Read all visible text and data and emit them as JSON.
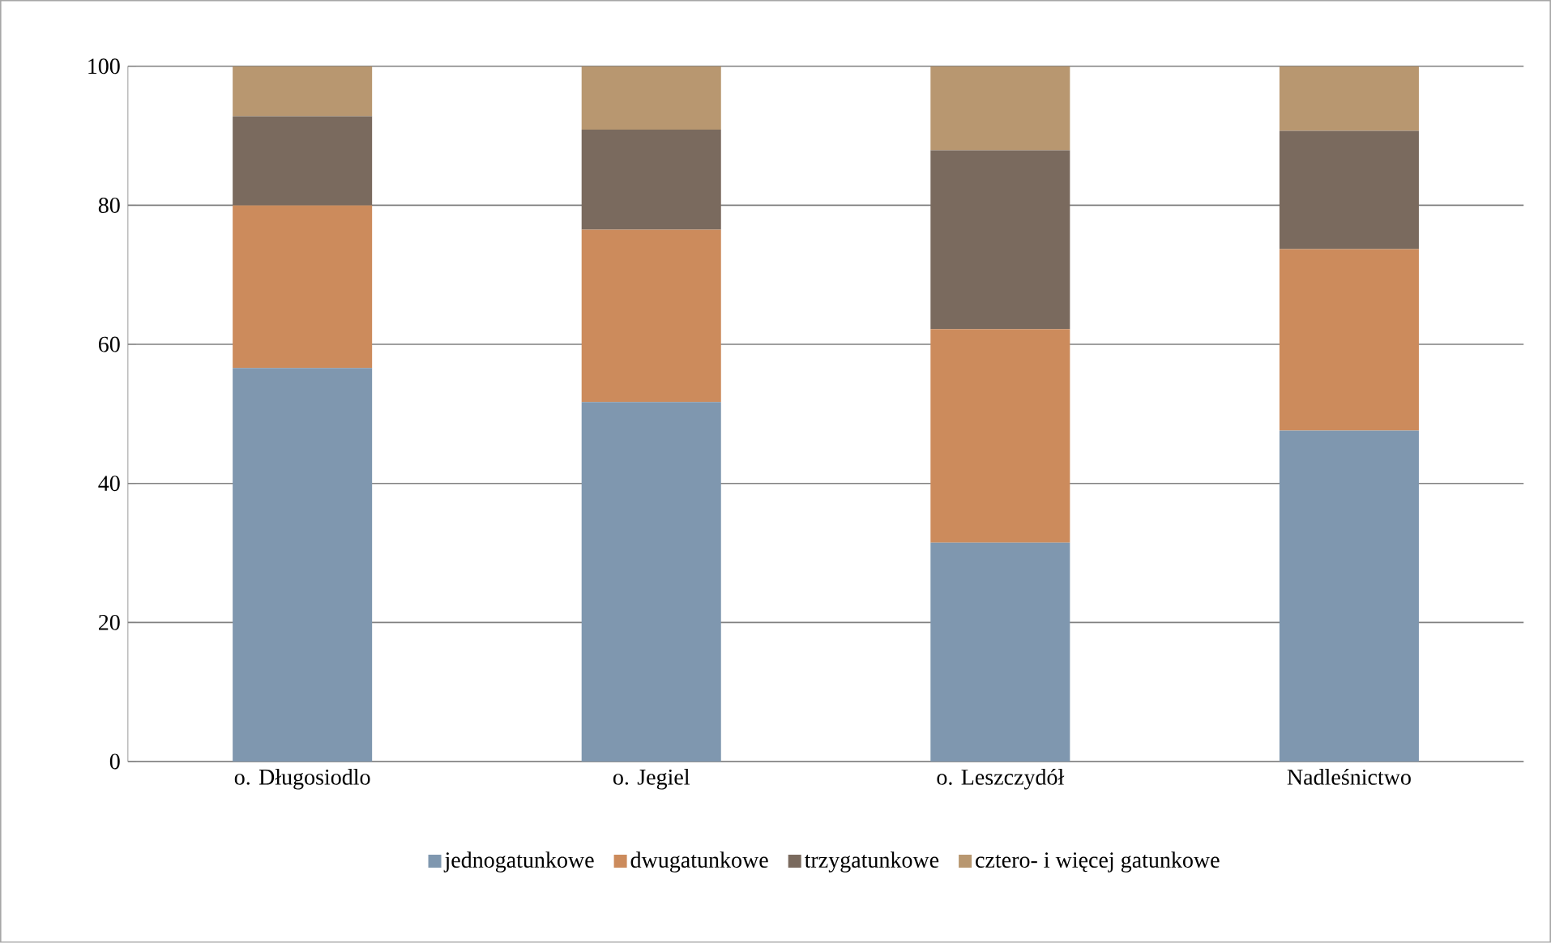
{
  "chart_data": {
    "type": "bar",
    "stacked": true,
    "categories": [
      "o. Długosiodlo",
      "o. Jegiel",
      "o. Leszczydół",
      "Nadleśnictwo"
    ],
    "series": [
      {
        "name": "jednogatunkowe",
        "color": "#7f97af",
        "values": [
          56.6,
          51.7,
          31.5,
          47.6
        ]
      },
      {
        "name": "dwugatunkowe",
        "color": "#cc8b5c",
        "values": [
          23.4,
          24.8,
          30.7,
          26.1
        ]
      },
      {
        "name": "trzygatunkowe",
        "color": "#7a6a5e",
        "values": [
          12.8,
          14.4,
          25.7,
          17.0
        ]
      },
      {
        "name": "cztero- i więcej gatunkowe",
        "color": "#b89770",
        "values": [
          7.2,
          9.1,
          12.1,
          9.3
        ]
      }
    ],
    "ylim": [
      0,
      100
    ],
    "yticks": [
      0,
      20,
      40,
      60,
      80,
      100
    ],
    "grid": "y",
    "legend": "bottom"
  }
}
